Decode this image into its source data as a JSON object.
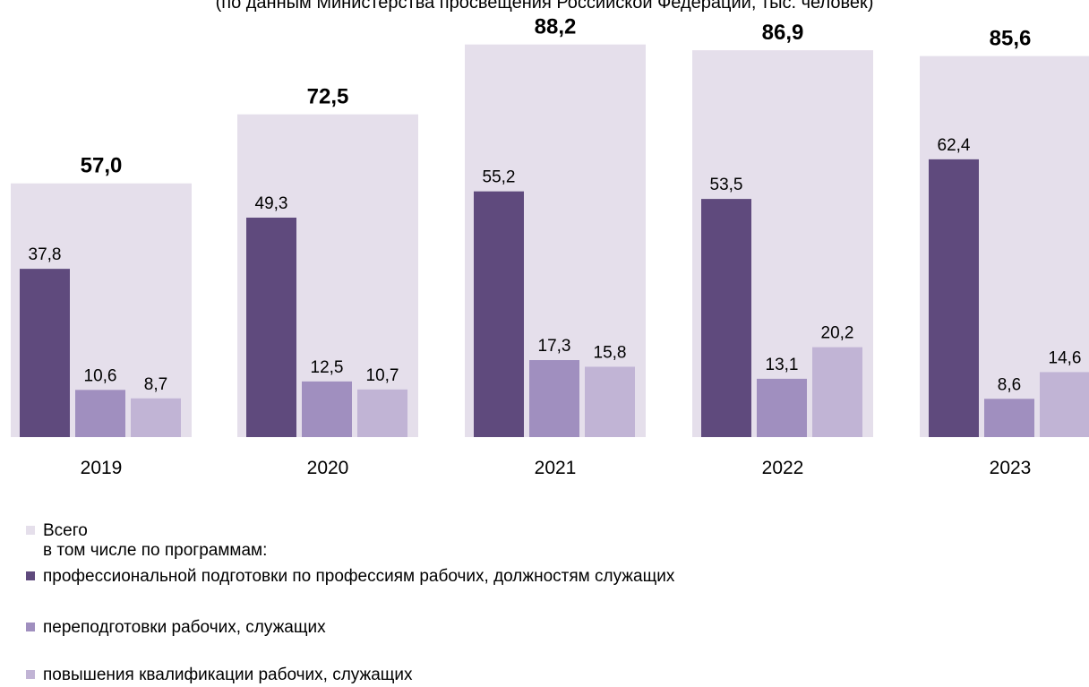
{
  "subtitle": "(по данным Министерства просвещения Российской Федерации, тыс. человек)",
  "colors": {
    "total": "#e5dfeb",
    "professional": "#5f4a7d",
    "retraining": "#a08fbf",
    "qualification": "#c1b4d5"
  },
  "legend": {
    "total": "Всего",
    "note": "в том числе по программам:",
    "professional": "профессиональной подготовки по профессиям рабочих, должностям служащих",
    "retraining": "переподготовки рабочих, служащих",
    "qualification": "повышения квалификации рабочих, служащих"
  },
  "chart_data": {
    "type": "bar",
    "title": "",
    "xlabel": "",
    "ylabel": "",
    "categories": [
      "2019",
      "2020",
      "2021",
      "2022",
      "2023"
    ],
    "series": [
      {
        "name": "Всего",
        "values": [
          57.0,
          72.5,
          88.2,
          86.9,
          85.6
        ],
        "labels": [
          "57,0",
          "72,5",
          "88,2",
          "86,9",
          "85,6"
        ]
      },
      {
        "name": "профессиональной подготовки по профессиям рабочих, должностям служащих",
        "values": [
          37.8,
          49.3,
          55.2,
          53.5,
          62.4
        ],
        "labels": [
          "37,8",
          "49,3",
          "55,2",
          "53,5",
          "62,4"
        ]
      },
      {
        "name": "переподготовки рабочих, служащих",
        "values": [
          10.6,
          12.5,
          17.3,
          13.1,
          8.6
        ],
        "labels": [
          "10,6",
          "12,5",
          "17,3",
          "13,1",
          "8,6"
        ]
      },
      {
        "name": "повышения квалификации рабочих, служащих",
        "values": [
          8.7,
          10.7,
          15.8,
          20.2,
          14.6
        ],
        "labels": [
          "8,7",
          "10,7",
          "15,8",
          "20,2",
          "14,6"
        ]
      }
    ],
    "ylim": [
      0,
      90
    ],
    "grid": false,
    "legend_position": "bottom-left"
  }
}
